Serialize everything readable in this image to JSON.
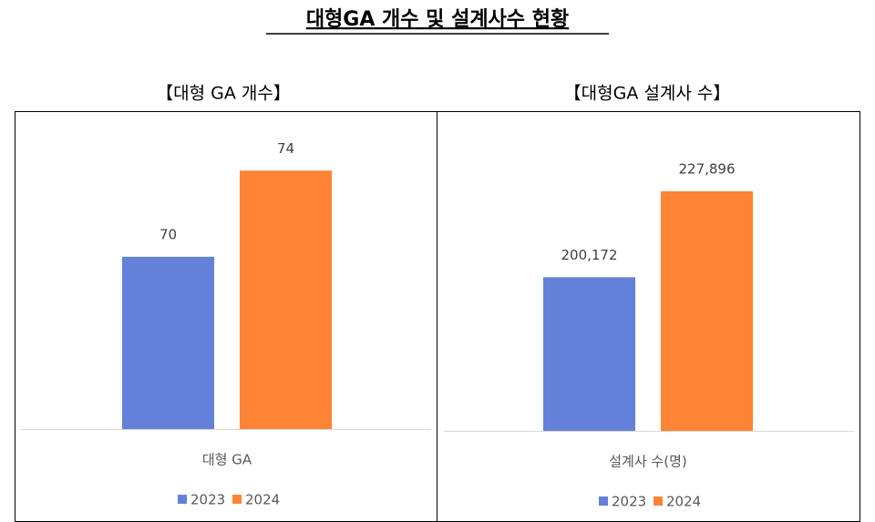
{
  "title": "대형GA 개수 및 설계사수 현황",
  "chart_data": [
    {
      "type": "bar",
      "title": "【대형 GA 개수】",
      "categories": [
        "대형 GA"
      ],
      "series": [
        {
          "name": "2023",
          "color": "#6381d8",
          "values": [
            70
          ]
        },
        {
          "name": "2024",
          "color": "#fd8435",
          "values": [
            74
          ]
        }
      ],
      "ylim": [
        62,
        76
      ]
    },
    {
      "type": "bar",
      "title": "【대형GA 설계사 수】",
      "categories": [
        "설계사 수(명)"
      ],
      "series": [
        {
          "name": "2023",
          "color": "#6381d8",
          "values": [
            200172
          ],
          "value_labels": [
            "200,172"
          ]
        },
        {
          "name": "2024",
          "color": "#fd8435",
          "values": [
            227896
          ],
          "value_labels": [
            "227,896"
          ]
        }
      ],
      "ylim": [
        150600,
        247000
      ]
    }
  ]
}
